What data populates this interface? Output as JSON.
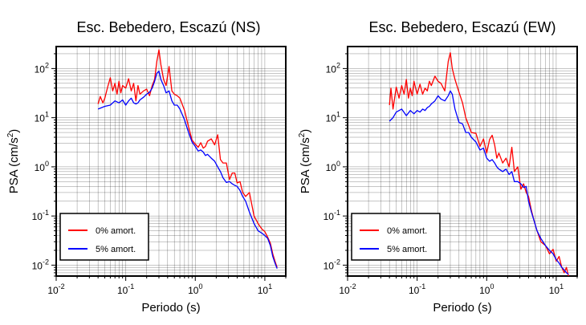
{
  "chart_data": [
    {
      "type": "line",
      "title": "Esc. Bebedero, Escazú (NS)",
      "xlabel": "Periodo (s)",
      "ylabel_main": "PSA (cm/s",
      "ylabel_sup": "2",
      "ylabel_end": ")",
      "x_scale": "log",
      "y_scale": "log",
      "xlim": [
        0.01,
        20
      ],
      "ylim": [
        0.006,
        280
      ],
      "x_ticks": [
        {
          "base": "10",
          "exp": "-2",
          "value": 0.01
        },
        {
          "base": "10",
          "exp": "-1",
          "value": 0.1
        },
        {
          "base": "10",
          "exp": "0",
          "value": 1
        },
        {
          "base": "10",
          "exp": "1",
          "value": 10
        }
      ],
      "y_ticks": [
        {
          "base": "10",
          "exp": "-2",
          "value": 0.01
        },
        {
          "base": "10",
          "exp": "-1",
          "value": 0.1
        },
        {
          "base": "10",
          "exp": "0",
          "value": 1
        },
        {
          "base": "10",
          "exp": "1",
          "value": 10
        },
        {
          "base": "10",
          "exp": "2",
          "value": 100
        }
      ],
      "grid": true,
      "legend_position": "bottom-left",
      "series": [
        {
          "name": "0% amort.",
          "color": "#ff0000",
          "x": [
            0.04,
            0.043,
            0.047,
            0.05,
            0.055,
            0.06,
            0.065,
            0.07,
            0.075,
            0.08,
            0.085,
            0.09,
            0.1,
            0.11,
            0.12,
            0.13,
            0.14,
            0.15,
            0.16,
            0.18,
            0.2,
            0.22,
            0.24,
            0.26,
            0.28,
            0.3,
            0.32,
            0.35,
            0.38,
            0.42,
            0.46,
            0.5,
            0.55,
            0.6,
            0.7,
            0.8,
            0.9,
            1.0,
            1.1,
            1.2,
            1.3,
            1.4,
            1.5,
            1.7,
            1.9,
            2.1,
            2.3,
            2.5,
            2.8,
            3.1,
            3.4,
            3.7,
            4.0,
            4.4,
            4.8,
            5.3,
            6.0,
            7.0,
            8.0,
            9.0,
            10,
            11,
            12,
            13,
            14,
            15
          ],
          "y": [
            19,
            27,
            20,
            25,
            42,
            65,
            35,
            50,
            30,
            55,
            32,
            45,
            40,
            62,
            35,
            50,
            22,
            45,
            30,
            35,
            38,
            28,
            45,
            60,
            140,
            240,
            120,
            60,
            45,
            110,
            35,
            30,
            28,
            25,
            14,
            6.5,
            3.5,
            2.9,
            2.5,
            3.1,
            2.4,
            2.6,
            3.3,
            3.7,
            2.8,
            4.5,
            1.4,
            1.2,
            1.2,
            0.55,
            0.75,
            0.75,
            0.47,
            0.5,
            0.3,
            0.25,
            0.3,
            0.1,
            0.07,
            0.055,
            0.048,
            0.037,
            0.028,
            0.017,
            0.012,
            0.009
          ]
        },
        {
          "name": "5% amort.",
          "color": "#0000ff",
          "x": [
            0.04,
            0.05,
            0.06,
            0.07,
            0.08,
            0.09,
            0.1,
            0.11,
            0.12,
            0.13,
            0.14,
            0.15,
            0.16,
            0.18,
            0.2,
            0.22,
            0.24,
            0.26,
            0.28,
            0.3,
            0.32,
            0.35,
            0.38,
            0.42,
            0.46,
            0.5,
            0.55,
            0.6,
            0.7,
            0.8,
            0.9,
            1.0,
            1.1,
            1.2,
            1.3,
            1.4,
            1.5,
            1.7,
            1.9,
            2.1,
            2.3,
            2.5,
            2.8,
            3.1,
            3.4,
            3.7,
            4.0,
            4.4,
            4.8,
            5.3,
            6.0,
            7.0,
            8.0,
            9.0,
            10,
            11,
            12,
            13,
            14,
            15
          ],
          "y": [
            15,
            17,
            18,
            22,
            20,
            23,
            18,
            22,
            25,
            20,
            19,
            20,
            23,
            26,
            30,
            33,
            40,
            55,
            80,
            88,
            60,
            45,
            32,
            35,
            22,
            18,
            18,
            15,
            9,
            5,
            3.2,
            2.6,
            2.1,
            2.2,
            2.0,
            1.7,
            1.8,
            1.5,
            1.3,
            1.0,
            0.8,
            0.6,
            0.48,
            0.5,
            0.45,
            0.42,
            0.4,
            0.33,
            0.25,
            0.2,
            0.12,
            0.07,
            0.05,
            0.045,
            0.04,
            0.035,
            0.025,
            0.015,
            0.011,
            0.0085
          ]
        }
      ]
    },
    {
      "type": "line",
      "title": "Esc. Bebedero, Escazú (EW)",
      "xlabel": "Periodo (s)",
      "ylabel_main": "PSA (cm/s",
      "ylabel_sup": "2",
      "ylabel_end": ")",
      "x_scale": "log",
      "y_scale": "log",
      "xlim": [
        0.01,
        20
      ],
      "ylim": [
        0.006,
        280
      ],
      "x_ticks": [
        {
          "base": "10",
          "exp": "-2",
          "value": 0.01
        },
        {
          "base": "10",
          "exp": "-1",
          "value": 0.1
        },
        {
          "base": "10",
          "exp": "0",
          "value": 1
        },
        {
          "base": "10",
          "exp": "1",
          "value": 10
        }
      ],
      "y_ticks": [
        {
          "base": "10",
          "exp": "-2",
          "value": 0.01
        },
        {
          "base": "10",
          "exp": "-1",
          "value": 0.1
        },
        {
          "base": "10",
          "exp": "0",
          "value": 1
        },
        {
          "base": "10",
          "exp": "1",
          "value": 10
        },
        {
          "base": "10",
          "exp": "2",
          "value": 100
        }
      ],
      "grid": true,
      "legend_position": "bottom-left",
      "series": [
        {
          "name": "0% amort.",
          "color": "#ff0000",
          "x": [
            0.04,
            0.042,
            0.045,
            0.05,
            0.055,
            0.06,
            0.065,
            0.07,
            0.075,
            0.08,
            0.085,
            0.09,
            0.1,
            0.11,
            0.12,
            0.13,
            0.14,
            0.15,
            0.16,
            0.18,
            0.2,
            0.22,
            0.25,
            0.28,
            0.3,
            0.32,
            0.35,
            0.4,
            0.45,
            0.5,
            0.55,
            0.6,
            0.7,
            0.8,
            0.9,
            1.0,
            1.1,
            1.2,
            1.3,
            1.4,
            1.5,
            1.7,
            1.9,
            2.1,
            2.3,
            2.5,
            2.8,
            3.1,
            3.4,
            3.7,
            4.0,
            4.4,
            4.8,
            5.3,
            6.0,
            7.0,
            8.0,
            9.0,
            10,
            11,
            12,
            13,
            14,
            15
          ],
          "y": [
            18,
            40,
            15,
            42,
            25,
            45,
            30,
            60,
            25,
            40,
            28,
            55,
            30,
            48,
            30,
            40,
            35,
            55,
            45,
            70,
            55,
            50,
            35,
            140,
            210,
            100,
            60,
            33,
            20,
            10,
            7,
            5,
            4.8,
            2.6,
            3.7,
            1.9,
            3.6,
            4.4,
            2.8,
            1.5,
            1.9,
            1.2,
            1.5,
            1.0,
            2.5,
            0.8,
            1.0,
            0.35,
            0.45,
            0.3,
            0.25,
            0.13,
            0.08,
            0.05,
            0.03,
            0.025,
            0.017,
            0.021,
            0.012,
            0.015,
            0.009,
            0.007,
            0.009,
            0.006
          ]
        },
        {
          "name": "5% amort.",
          "color": "#0000ff",
          "x": [
            0.04,
            0.045,
            0.05,
            0.06,
            0.07,
            0.08,
            0.09,
            0.1,
            0.11,
            0.12,
            0.13,
            0.14,
            0.15,
            0.16,
            0.18,
            0.2,
            0.22,
            0.25,
            0.28,
            0.3,
            0.32,
            0.35,
            0.4,
            0.45,
            0.5,
            0.55,
            0.6,
            0.7,
            0.8,
            0.9,
            1.0,
            1.1,
            1.2,
            1.3,
            1.4,
            1.5,
            1.7,
            1.9,
            2.1,
            2.3,
            2.5,
            2.8,
            3.1,
            3.4,
            3.7,
            4.0,
            4.4,
            4.8,
            5.3,
            6.0,
            7.0,
            8.0,
            9.0,
            10,
            11,
            12,
            13,
            14,
            15
          ],
          "y": [
            8.5,
            10,
            13,
            15,
            11,
            14,
            12,
            14,
            13,
            15,
            14,
            16,
            17,
            19,
            22,
            28,
            24,
            22,
            28,
            35,
            30,
            15,
            8,
            7.5,
            5,
            5,
            4,
            3.2,
            2.2,
            2.4,
            1.5,
            1.3,
            1.4,
            1.2,
            1.0,
            0.9,
            0.8,
            0.9,
            0.7,
            0.8,
            0.5,
            0.5,
            0.45,
            0.38,
            0.4,
            0.2,
            0.12,
            0.08,
            0.05,
            0.035,
            0.025,
            0.02,
            0.017,
            0.013,
            0.011,
            0.009,
            0.008,
            0.007,
            0.0065
          ]
        }
      ]
    }
  ]
}
